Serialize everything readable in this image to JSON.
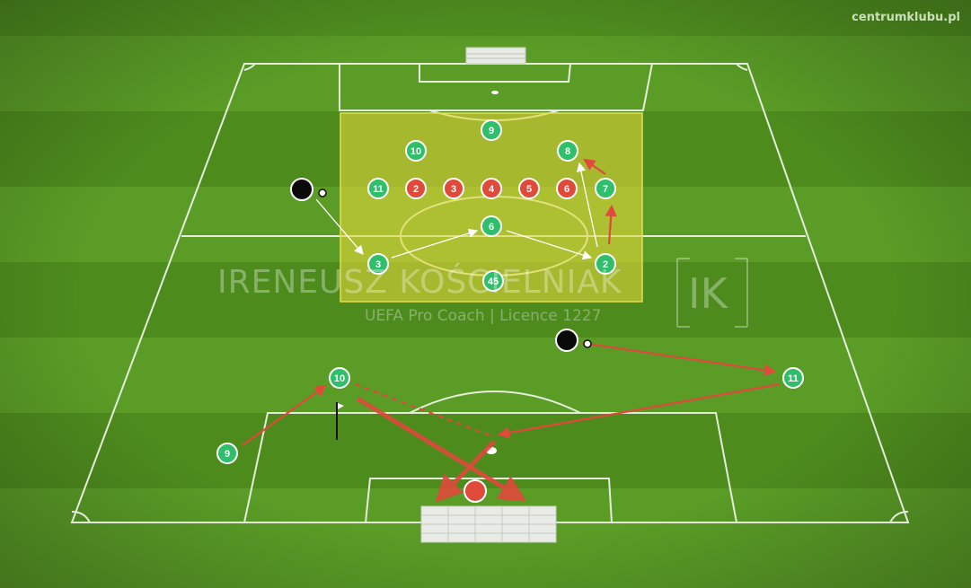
{
  "header": {
    "site_label": "centrumklubu.pl"
  },
  "watermark": {
    "name": "IRENEUSZ KOŚCIELNIAK",
    "subtitle": "UEFA Pro Coach   |   Licence 1227",
    "logo_letters": "IK"
  },
  "colors": {
    "grass_light": "#5fa52a",
    "grass_dark": "#4a8a1c",
    "line": "#ffffff",
    "zone_fill": "#e3d93a",
    "green_player": "#2fbf6a",
    "red_player": "#e04a3a",
    "arrow_red": "#e0493b",
    "arrow_white": "#ffffff"
  },
  "players": [
    {
      "id": "g9-top",
      "team": "green",
      "number": "9"
    },
    {
      "id": "g10-top",
      "team": "green",
      "number": "10"
    },
    {
      "id": "g8",
      "team": "green",
      "number": "8"
    },
    {
      "id": "g11-top",
      "team": "green",
      "number": "11"
    },
    {
      "id": "r2",
      "team": "red",
      "number": "2"
    },
    {
      "id": "r3",
      "team": "red",
      "number": "3"
    },
    {
      "id": "r4",
      "team": "red",
      "number": "4"
    },
    {
      "id": "r5",
      "team": "red",
      "number": "5"
    },
    {
      "id": "r6",
      "team": "red",
      "number": "6"
    },
    {
      "id": "g7",
      "team": "green",
      "number": "7"
    },
    {
      "id": "g6",
      "team": "green",
      "number": "6"
    },
    {
      "id": "g3",
      "team": "green",
      "number": "3"
    },
    {
      "id": "g2",
      "team": "green",
      "number": "2"
    },
    {
      "id": "g45",
      "team": "green",
      "number": "45"
    },
    {
      "id": "g10-bot",
      "team": "green",
      "number": "10"
    },
    {
      "id": "g11-bot",
      "team": "green",
      "number": "11"
    },
    {
      "id": "g9-bot",
      "team": "green",
      "number": "9"
    },
    {
      "id": "keeper",
      "team": "red",
      "number": ""
    },
    {
      "id": "coach-top",
      "team": "black",
      "number": ""
    },
    {
      "id": "coach-bot",
      "team": "black",
      "number": ""
    }
  ]
}
